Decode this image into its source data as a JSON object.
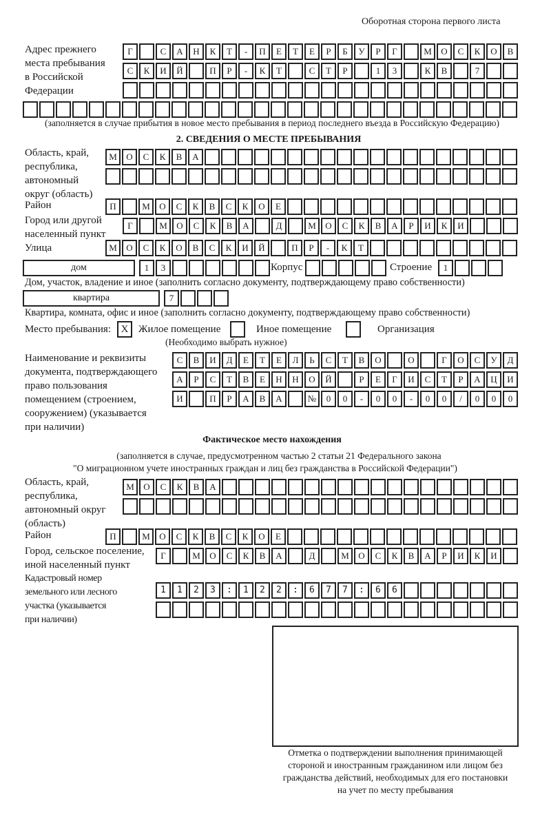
{
  "header": {
    "page_side": "Оборотная сторона первого листа"
  },
  "prev_address": {
    "label_lines": [
      "Адрес прежнего",
      "места пребывания",
      "в Российской",
      "Федерации"
    ],
    "rows": [
      "Г САНКТ-ПЕТЕРБУРГ МОСКОВ",
      "СКИЙ ПР-КТ СТР 13 КВ 7",
      "",
      ""
    ],
    "note": "(заполняется в случае прибытия в новое место пребывания в период последнего въезда в Российскую Федерацию)"
  },
  "section2": {
    "title": "2. СВЕДЕНИЯ О МЕСТЕ ПРЕБЫВАНИЯ",
    "region": {
      "label_lines": [
        "Область, край,",
        "республика,",
        "автономный",
        "округ (область)"
      ],
      "rows": [
        "МОСКВА",
        ""
      ]
    },
    "district": {
      "label_lines": [
        "Район"
      ],
      "rows": [
        "П МОСКВСКОЕ"
      ]
    },
    "city": {
      "label_lines": [
        "Город или другой",
        "населенный пункт"
      ],
      "rows": [
        "Г МОСКВА Д МОСКВАРИКИ"
      ]
    },
    "street": {
      "label_lines": [
        "Улица"
      ],
      "rows": [
        "МОСКОВСКИЙ ПР-КТ"
      ]
    },
    "house": {
      "type": "дом",
      "number": "13",
      "korpus_label": "Корпус",
      "korpus": "",
      "stroenie_label": "Строение",
      "stroenie": "1",
      "note": "Дом, участок, владение и иное (заполнить согласно документу, подтверждающему право собственности)"
    },
    "apartment": {
      "type": "квартира",
      "number": "7",
      "note": "Квартира, комната, офис и иное (заполнить согласно документу, подтверждающему право собственности)"
    },
    "stay_place": {
      "label": "Место пребывания:",
      "options": [
        {
          "label": "Жилое помещение",
          "mark": "X"
        },
        {
          "label": "Иное помещение",
          "mark": ""
        },
        {
          "label": "Организация",
          "mark": ""
        }
      ],
      "note": "(Необходимо выбрать нужное)"
    },
    "document": {
      "label_lines": [
        "Наименование и реквизиты",
        "документа, подтверждающего",
        "право пользования",
        "помещением (строением,",
        "сооружением) (указывается",
        "при наличии)"
      ],
      "rows": [
        "СВИДЕТЕЛЬСТВО О ГОСУД",
        "АРСТВЕННОЙ РЕГИСТРАЦИ",
        "И ПРАВА №00-00-00/000"
      ]
    }
  },
  "actual": {
    "title": "Фактическое место нахождения",
    "note_lines": [
      "(заполняется в случае, предусмотренном частью 2 статьи 21 Федерального закона",
      "\"О миграционном учете иностранных граждан и лиц без гражданства в Российской Федерации\")"
    ],
    "region": {
      "label_lines": [
        "Область, край,",
        "республика,",
        "автономный округ",
        "(область)"
      ],
      "rows": [
        "МОСКВА",
        ""
      ]
    },
    "district": {
      "label_lines": [
        "Район"
      ],
      "rows": [
        "П МОСКВСКОЕ"
      ]
    },
    "city": {
      "label_lines": [
        "Город, сельское поселение,",
        "иной населенный пункт"
      ],
      "rows": [
        "Г МОСКВА Д МОСКВАРИКИ"
      ]
    },
    "cadastral": {
      "label_lines": [
        "Кадастровый номер",
        "земельного или лесного",
        "участка (указывается",
        "при наличии)"
      ],
      "rows": [
        "1123:122:677:66",
        ""
      ]
    }
  },
  "stamp": {
    "caption_lines": [
      "Отметка о подтверждении выполнения принимающей",
      "стороной и иностранным гражданином или лицом без",
      "гражданства действий, необходимых для его постановки",
      "на учет по месту пребывания"
    ]
  }
}
